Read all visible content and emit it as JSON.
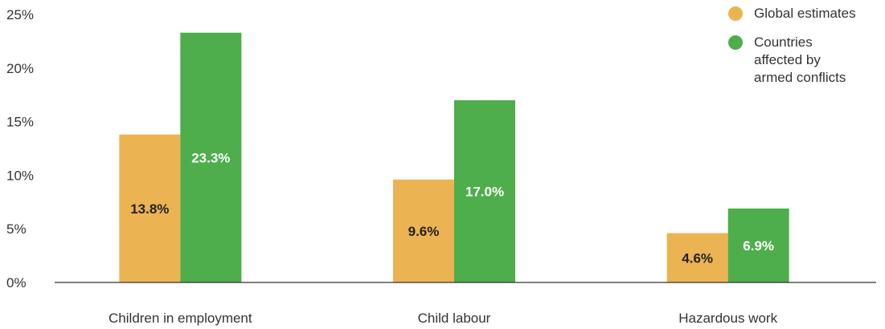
{
  "chart_data": {
    "type": "bar",
    "categories": [
      "Children in employment",
      "Child labour",
      "Hazardous work"
    ],
    "series": [
      {
        "name": "Global estimates",
        "color": "#ECB352",
        "label_color": "#222222",
        "values": [
          13.8,
          9.6,
          4.6
        ],
        "labels": [
          "13.8%",
          "9.6%",
          "4.6%"
        ]
      },
      {
        "name": "Countries\naffected by\narmed conflicts",
        "color": "#4DAE4B",
        "label_color": "#ffffff",
        "values": [
          23.3,
          17.0,
          6.9
        ],
        "labels": [
          "23.3%",
          "17.0%",
          "6.9%"
        ]
      }
    ],
    "ylim": [
      0,
      25
    ],
    "yticks": [
      0,
      5,
      10,
      15,
      20,
      25
    ],
    "ytick_labels": [
      "0%",
      "5%",
      "10%",
      "15%",
      "20%",
      "25%"
    ],
    "title": "",
    "xlabel": "",
    "ylabel": "",
    "legend_position": "top-right",
    "grid": false
  }
}
